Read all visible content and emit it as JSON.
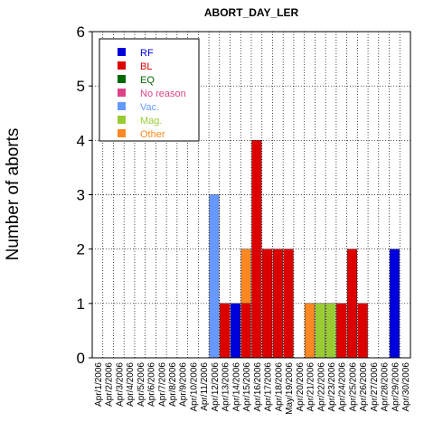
{
  "chart_data": {
    "type": "bar",
    "stacked": true,
    "title": "ABORT_DAY_LER",
    "xlabel": "",
    "ylabel": "Number of aborts",
    "ylim": [
      0,
      6
    ],
    "yticks": [
      0,
      1,
      2,
      3,
      4,
      5,
      6
    ],
    "grid": true,
    "legend_position": "top-left",
    "categories": [
      "Apr/1/2006",
      "Apr/2/2006",
      "Apr/3/2006",
      "Apr/4/2006",
      "Apr/5/2006",
      "Apr/6/2006",
      "Apr/7/2006",
      "Apr/8/2006",
      "Apr/9/2006",
      "Apr/10/2006",
      "Apr/11/2006",
      "Apr/12/2006",
      "Apr/13/2006",
      "Apr/14/2006",
      "Apr/15/2006",
      "Apr/16/2006",
      "Apr/17/2006",
      "Apr/18/2006",
      "May/19/2006",
      "Apr/20/2006",
      "Apr/21/2006",
      "Apr/22/2006",
      "Apr/23/2006",
      "Apr/24/2006",
      "Apr/25/2006",
      "Apr/26/2006",
      "Apr/27/2006",
      "Apr/28/2006",
      "Apr/29/2006",
      "Apr/30/2006"
    ],
    "series": [
      {
        "name": "RF",
        "color": "#0000dd",
        "values": [
          0,
          0,
          0,
          0,
          0,
          0,
          0,
          0,
          0,
          0,
          0,
          0,
          0,
          1,
          0,
          0,
          0,
          0,
          0,
          0,
          0,
          0,
          0,
          0,
          0,
          0,
          0,
          0,
          2,
          0
        ]
      },
      {
        "name": "BL",
        "color": "#dd0000",
        "values": [
          0,
          0,
          0,
          0,
          0,
          0,
          0,
          0,
          0,
          0,
          0,
          0,
          1,
          0,
          1,
          4,
          2,
          2,
          2,
          0,
          0,
          0,
          0,
          1,
          2,
          1,
          0,
          0,
          0,
          0
        ]
      },
      {
        "name": "EQ",
        "color": "#006600",
        "values": [
          0,
          0,
          0,
          0,
          0,
          0,
          0,
          0,
          0,
          0,
          0,
          0,
          0,
          0,
          0,
          0,
          0,
          0,
          0,
          0,
          0,
          0,
          0,
          0,
          0,
          0,
          0,
          0,
          0,
          0
        ]
      },
      {
        "name": "No reason",
        "color": "#dd4488",
        "values": [
          0,
          0,
          0,
          0,
          0,
          0,
          0,
          0,
          0,
          0,
          0,
          0,
          0,
          0,
          0,
          0,
          0,
          0,
          0,
          0,
          0,
          0,
          0,
          0,
          0,
          0,
          0,
          0,
          0,
          0
        ]
      },
      {
        "name": "Vac.",
        "color": "#6699ff",
        "values": [
          0,
          0,
          0,
          0,
          0,
          0,
          0,
          0,
          0,
          0,
          0,
          3,
          0,
          0,
          0,
          0,
          0,
          0,
          0,
          0,
          0,
          0,
          0,
          0,
          0,
          0,
          0,
          0,
          0,
          0
        ]
      },
      {
        "name": "Mag.",
        "color": "#99cc33",
        "values": [
          0,
          0,
          0,
          0,
          0,
          0,
          0,
          0,
          0,
          0,
          0,
          0,
          0,
          0,
          0,
          0,
          0,
          0,
          0,
          0,
          0,
          1,
          1,
          0,
          0,
          0,
          0,
          0,
          0,
          0
        ]
      },
      {
        "name": "Other",
        "color": "#ff8822",
        "values": [
          0,
          0,
          0,
          0,
          0,
          0,
          0,
          0,
          0,
          0,
          0,
          0,
          0,
          0,
          1,
          0,
          0,
          0,
          0,
          0,
          1,
          0,
          0,
          0,
          0,
          0,
          0,
          0,
          0,
          0
        ]
      }
    ]
  }
}
